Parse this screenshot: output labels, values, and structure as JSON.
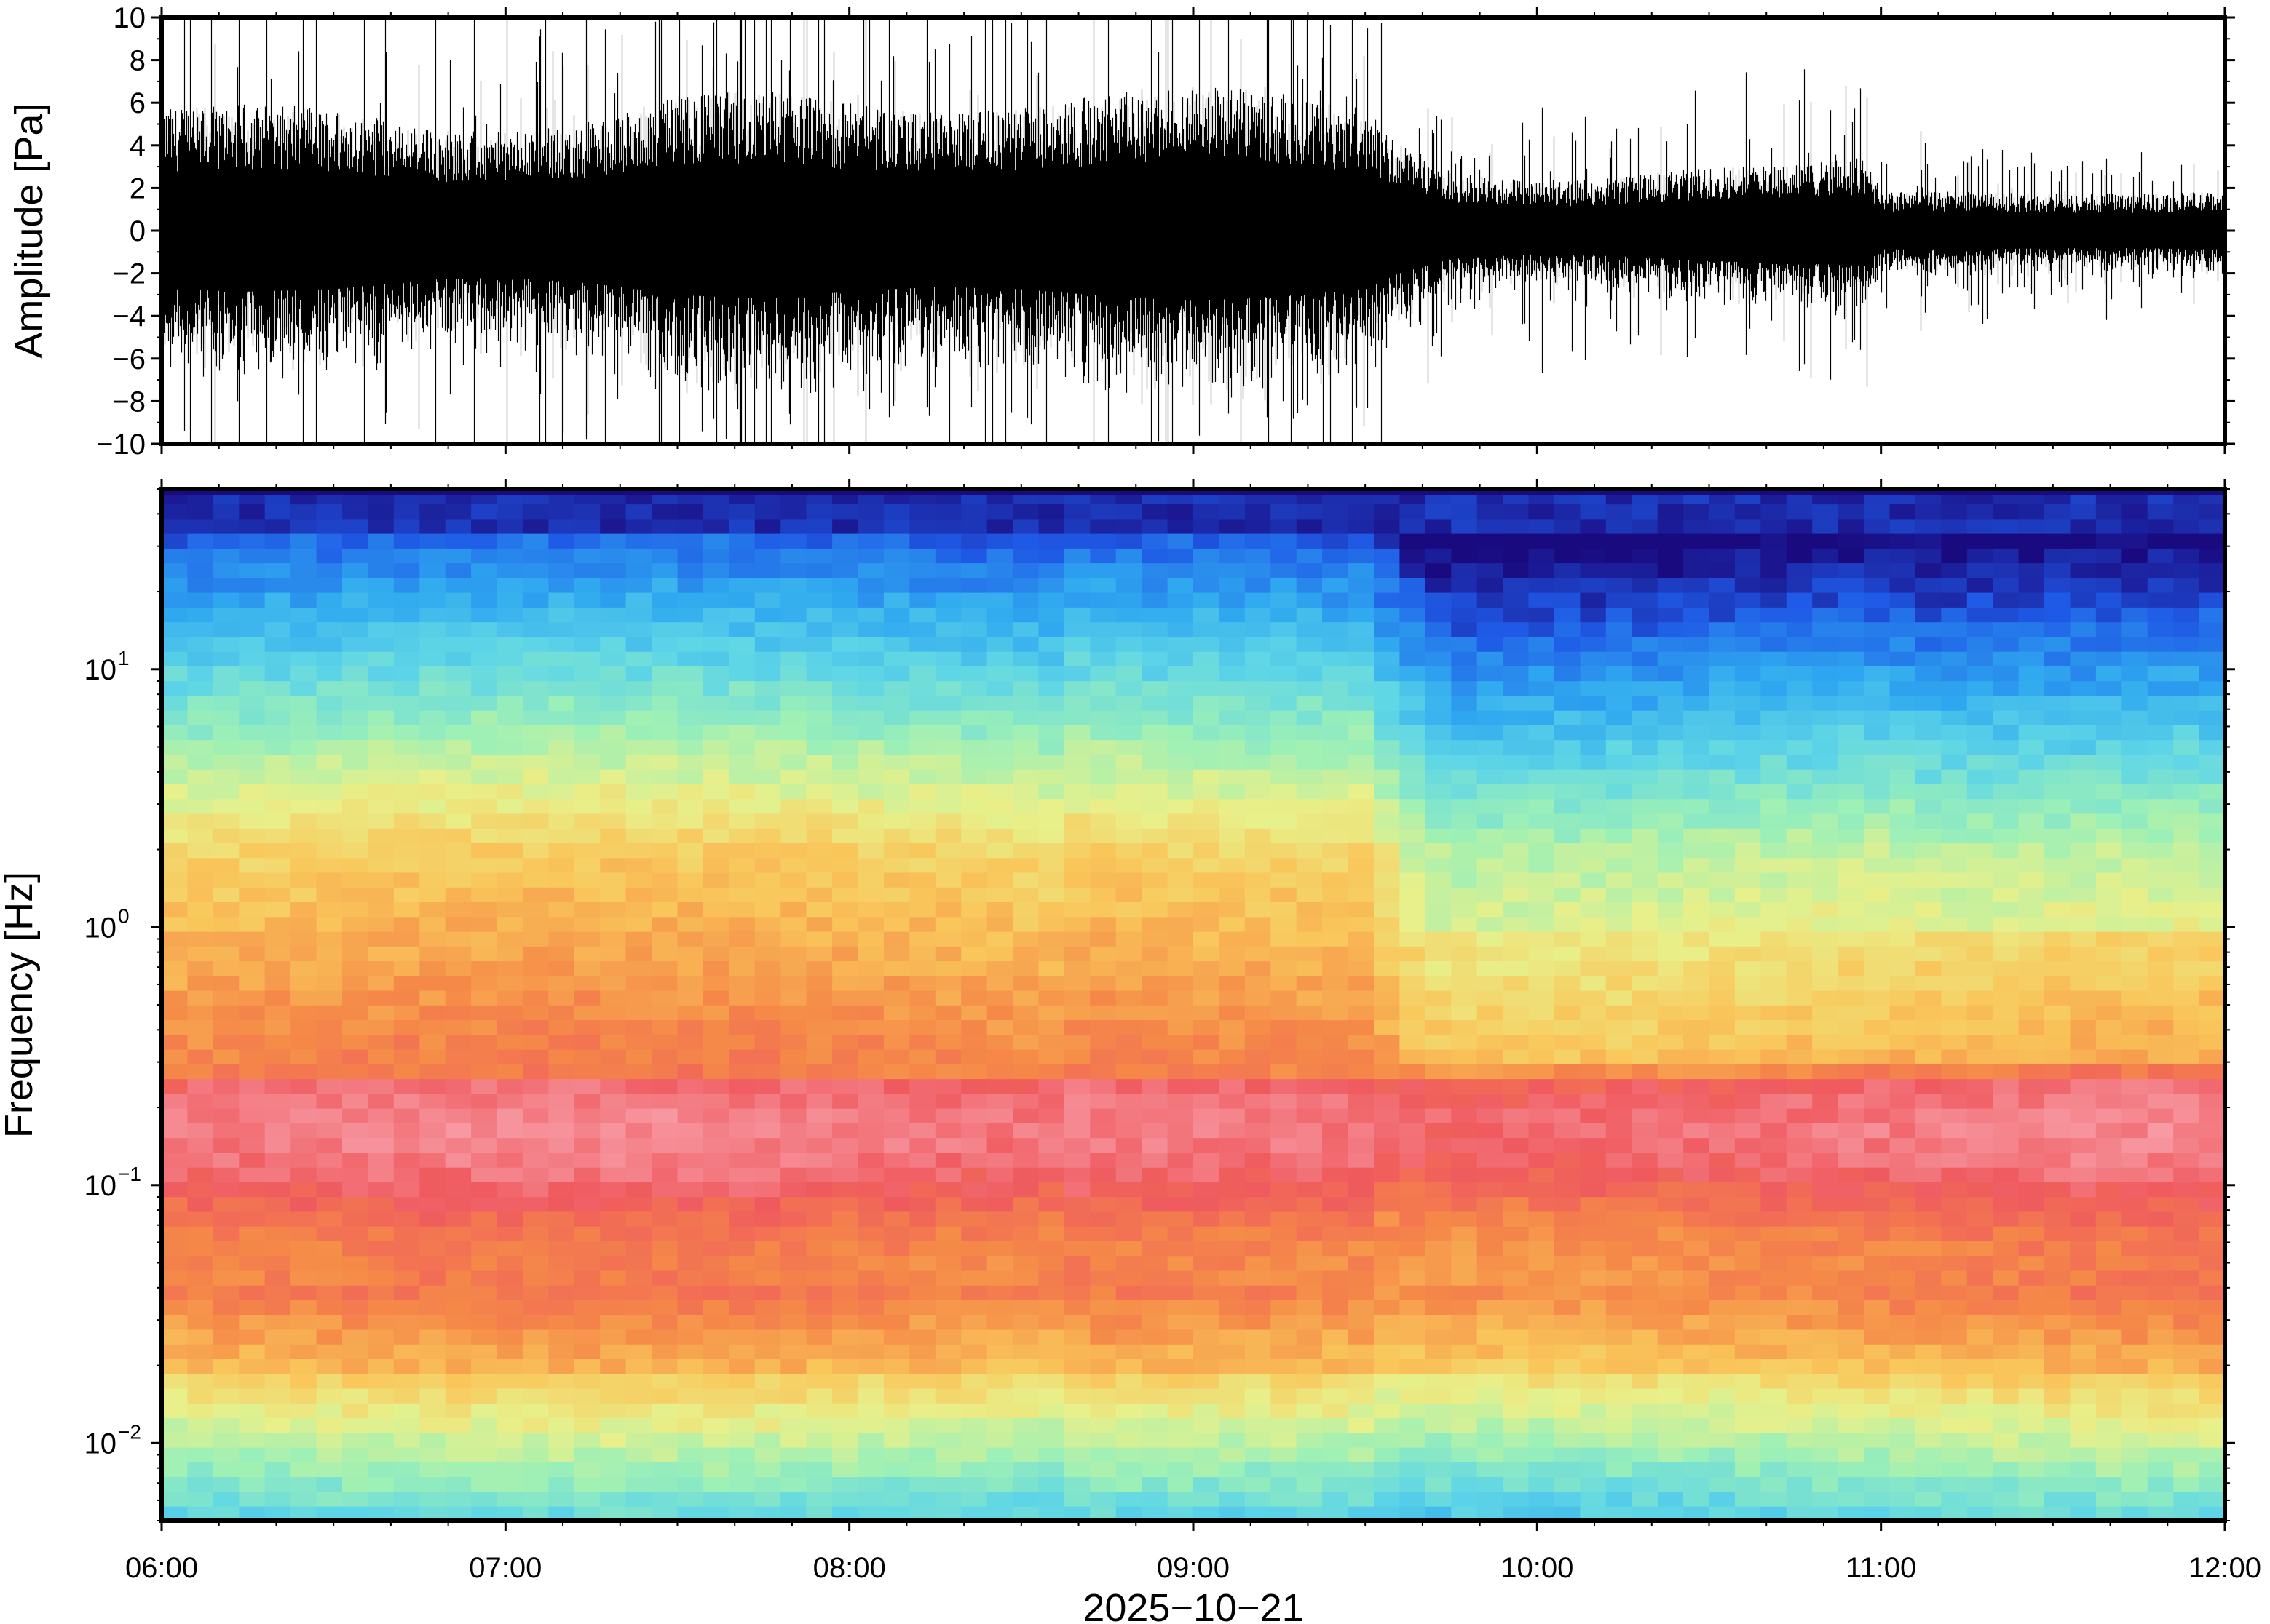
{
  "chart_data": [
    {
      "type": "line",
      "panel": "waveform",
      "ylabel": "Amplitude [Pa]",
      "ylim": [
        -10,
        10
      ],
      "yticks": [
        10,
        8,
        6,
        4,
        2,
        0,
        -2,
        -4,
        -6,
        -8,
        -10
      ],
      "ytick_labels": [
        "10",
        "8",
        "6",
        "4",
        "2",
        "0",
        "−2",
        "−4",
        "−6",
        "−8",
        "−10"
      ],
      "x_range_hours": [
        6,
        12
      ],
      "series": [
        {
          "color": "#000000",
          "x_hours": [
            6.0,
            6.25,
            6.5,
            6.75,
            7.0,
            7.25,
            7.5,
            7.75,
            8.0,
            8.25,
            8.5,
            8.75,
            9.0,
            9.25,
            9.5,
            9.6,
            9.75,
            10.0,
            10.25,
            10.5,
            10.75,
            10.95,
            11.0,
            11.25,
            11.5,
            11.75,
            12.0
          ],
          "envelope_pa": [
            5.0,
            5.2,
            5.0,
            4.2,
            4.0,
            4.5,
            5.5,
            5.8,
            5.2,
            4.8,
            5.0,
            5.6,
            6.0,
            5.6,
            5.0,
            3.6,
            2.4,
            2.0,
            2.2,
            2.6,
            2.8,
            3.0,
            1.6,
            1.6,
            1.5,
            1.5,
            1.6
          ]
        }
      ],
      "grid": false
    },
    {
      "type": "heatmap",
      "panel": "spectrogram",
      "ylabel": "Frequency [Hz]",
      "xlabel": "2025−10−21",
      "yscale": "log",
      "ylim": [
        0.005,
        50
      ],
      "yticks": [
        0.01,
        0.1,
        1,
        10
      ],
      "ytick_labels": [
        {
          "base": "10",
          "exp": "−2"
        },
        {
          "base": "10",
          "exp": "−1"
        },
        {
          "base": "10",
          "exp": "0"
        },
        {
          "base": "10",
          "exp": "1"
        }
      ],
      "x_range_hours": [
        6,
        12
      ],
      "xticks_hours": [
        6,
        7,
        8,
        9,
        10,
        11,
        12
      ],
      "xtick_labels": [
        "06:00",
        "07:00",
        "08:00",
        "09:00",
        "10:00",
        "11:00",
        "12:00"
      ],
      "colormap": [
        "#1a0a80",
        "#1f5ae6",
        "#2fa8f0",
        "#5fd6e6",
        "#9df0b6",
        "#e8f08a",
        "#f9c65a",
        "#f58a48",
        "#ef5a5e",
        "#f79aa4"
      ],
      "regime_change_hour": 9.55,
      "grid": false
    }
  ]
}
